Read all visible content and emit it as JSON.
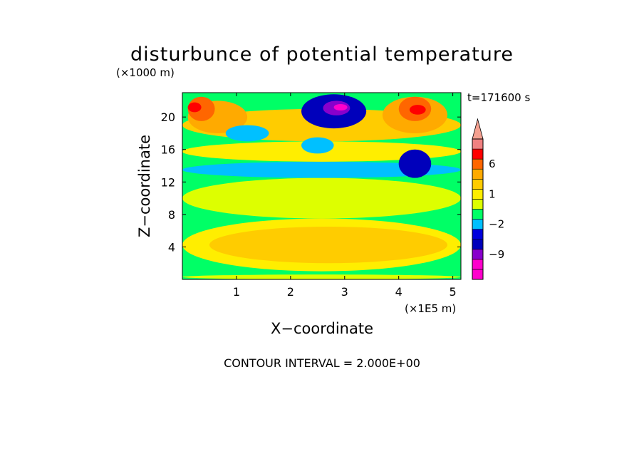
{
  "chart_data": {
    "type": "heatmap",
    "title": "disturbunce of potential temperature",
    "y_multiplier_label": "(×1000 m)",
    "x_multiplier_label": "(×1E5 m)",
    "xlabel": "X−coordinate",
    "ylabel": "Z−coordinate",
    "time_label": "t=171600 s",
    "footer": "CONTOUR INTERVAL = 2.000E+00",
    "xlim": [
      0,
      5.15
    ],
    "ylim": [
      0,
      23
    ],
    "x_ticks": [
      1,
      2,
      3,
      4,
      5
    ],
    "x_tick_labels": [
      "1",
      "2",
      "3",
      "4",
      "5"
    ],
    "y_ticks": [
      4,
      8,
      12,
      16,
      20
    ],
    "y_tick_labels": [
      "4",
      "8",
      "12",
      "16",
      "20"
    ],
    "colorbar": {
      "levels": [
        {
          "label": "",
          "color": "#ff00cc"
        },
        {
          "label": "",
          "color": "#ff00cc"
        },
        {
          "label": "−9",
          "color": "#8800cc"
        },
        {
          "label": "",
          "color": "#0000bb"
        },
        {
          "label": "",
          "color": "#0000dd"
        },
        {
          "label": "−2",
          "color": "#00c0ff"
        },
        {
          "label": "",
          "color": "#00ff66"
        },
        {
          "label": "",
          "color": "#ddff00"
        },
        {
          "label": "1",
          "color": "#ffee00"
        },
        {
          "label": "",
          "color": "#ffcc00"
        },
        {
          "label": "",
          "color": "#ffaa00"
        },
        {
          "label": "6",
          "color": "#ff6600"
        },
        {
          "label": "",
          "color": "#ff0000"
        },
        {
          "label": "",
          "color": "#f08080"
        }
      ],
      "extend_top_color": "#f4a090"
    },
    "regions": [
      {
        "level": 6,
        "x": [
          0,
          5.15
        ],
        "y": [
          0,
          23
        ]
      },
      {
        "level": 7,
        "x": [
          0,
          5.15
        ],
        "y": [
          7.5,
          12.5
        ]
      },
      {
        "level": 8,
        "x": [
          0,
          5.15
        ],
        "y": [
          1,
          7.5
        ]
      },
      {
        "level": 9,
        "x": [
          0.5,
          4.9
        ],
        "y": [
          2,
          6.5
        ]
      },
      {
        "level": 5,
        "x": [
          0,
          5.15
        ],
        "y": [
          12.5,
          14.5
        ]
      },
      {
        "level": 7,
        "x": [
          0,
          5.15
        ],
        "y": [
          0,
          0.6
        ]
      },
      {
        "level": 8,
        "x": [
          0,
          5.15
        ],
        "y": [
          14.5,
          17
        ]
      },
      {
        "level": 9,
        "x": [
          0,
          5.15
        ],
        "y": [
          17,
          21
        ]
      },
      {
        "level": 10,
        "x": [
          0.1,
          1.2
        ],
        "y": [
          18,
          22
        ]
      },
      {
        "level": 11,
        "x": [
          0.1,
          0.6
        ],
        "y": [
          19.5,
          22.5
        ]
      },
      {
        "level": 12,
        "x": [
          0.1,
          0.35
        ],
        "y": [
          20.6,
          21.8
        ]
      },
      {
        "level": 10,
        "x": [
          3.7,
          4.9
        ],
        "y": [
          18,
          22.5
        ]
      },
      {
        "level": 11,
        "x": [
          4.0,
          4.6
        ],
        "y": [
          19.5,
          22.5
        ]
      },
      {
        "level": 12,
        "x": [
          4.2,
          4.5
        ],
        "y": [
          20.3,
          21.5
        ]
      },
      {
        "level": 3,
        "x": [
          2.2,
          3.4
        ],
        "y": [
          18.6,
          22.8
        ]
      },
      {
        "level": 2,
        "x": [
          2.6,
          3.1
        ],
        "y": [
          20.2,
          22.0
        ]
      },
      {
        "level": 1,
        "x": [
          2.8,
          3.05
        ],
        "y": [
          20.8,
          21.6
        ]
      },
      {
        "level": 3,
        "x": [
          4.0,
          4.6
        ],
        "y": [
          12.5,
          16
        ]
      },
      {
        "level": 5,
        "x": [
          0.8,
          1.6
        ],
        "y": [
          17,
          19
        ]
      },
      {
        "level": 5,
        "x": [
          2.2,
          2.8
        ],
        "y": [
          15.5,
          17.5
        ]
      }
    ]
  }
}
